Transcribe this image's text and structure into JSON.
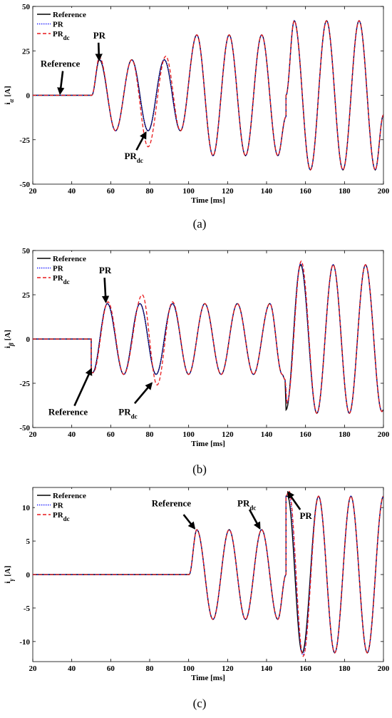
{
  "chart_data": [
    {
      "type": "line",
      "xlabel": "Time [ms]",
      "ylabel": "i",
      "ylabel_sub": "α",
      "ylabel_unit": "[A]",
      "xlim": [
        20,
        200
      ],
      "ylim": [
        -50,
        50
      ],
      "xticks": [
        20,
        40,
        60,
        80,
        100,
        120,
        140,
        160,
        180,
        200
      ],
      "yticks": [
        -50,
        -25,
        0,
        25,
        50
      ],
      "grid": false,
      "legend_position": "top-left",
      "caption": "(a)",
      "series": [
        {
          "name": "Reference",
          "color": "#000000",
          "dash": "solid",
          "x": [
            20,
            50,
            50.3,
            54.2,
            62.5,
            70.8,
            79.2,
            87.5,
            95.8,
            104.2,
            112.5,
            120.8,
            129.2,
            137.5,
            145.8,
            150,
            150,
            150.01,
            154.2,
            162.5,
            170.8,
            179.2,
            187.5,
            195.8,
            200
          ],
          "y": [
            0,
            0,
            0,
            20,
            -20,
            20,
            -20,
            20,
            -20,
            34,
            -34,
            34,
            -34,
            34,
            -34,
            -12,
            0,
            0,
            42,
            -42,
            42,
            -42,
            42,
            -42,
            -11
          ]
        },
        {
          "name": "PR",
          "color": "#1f1fff",
          "dash": "dot",
          "x": [
            20,
            50,
            50.3,
            54.2,
            62.5,
            70.8,
            79.2,
            87.5,
            95.8,
            104.2,
            112.5,
            120.8,
            129.2,
            137.5,
            145.8,
            150,
            150,
            150.01,
            154.2,
            162.5,
            170.8,
            179.2,
            187.5,
            195.8,
            200
          ],
          "y": [
            0,
            0,
            0,
            20.5,
            -20,
            20,
            -20,
            20,
            -20,
            34,
            -34,
            34,
            -34,
            34,
            -34,
            -12,
            0,
            0,
            42,
            -42,
            42,
            -42,
            42,
            -42,
            -11
          ]
        },
        {
          "name": "PR_dc",
          "color": "#e8191b",
          "dash": "dash",
          "x": [
            20,
            50,
            50.3,
            54.2,
            62.5,
            70.8,
            79.2,
            88.3,
            95.8,
            104.2,
            112.5,
            120.8,
            129.2,
            137.5,
            145.8,
            150,
            150,
            150.01,
            154.2,
            162.5,
            170.8,
            179.2,
            187.5,
            195.8,
            200
          ],
          "y": [
            0,
            0,
            0,
            21.5,
            -20,
            20,
            -29,
            22,
            -20,
            34,
            -34,
            34,
            -34,
            34,
            -34,
            -12,
            0,
            0,
            42,
            -42,
            42,
            -42,
            42,
            -42,
            -11
          ]
        }
      ],
      "legend": [
        {
          "label": "Reference",
          "sub": ""
        },
        {
          "label": "PR",
          "sub": ""
        },
        {
          "label": "PR",
          "sub": "dc"
        }
      ],
      "annotations": [
        {
          "label": "PR",
          "sub": "",
          "tx": 51,
          "ty": 32,
          "hx": 54,
          "hy": 20
        },
        {
          "label": "Reference",
          "sub": "",
          "tx": 24,
          "ty": 16,
          "hx": 34,
          "hy": 1
        },
        {
          "label": "PR",
          "sub": "dc",
          "tx": 67,
          "ty": -36,
          "hx": 78,
          "hy": -21
        }
      ]
    },
    {
      "type": "line",
      "xlabel": "Time [ms]",
      "ylabel": "i",
      "ylabel_sub": "β",
      "ylabel_unit": "[A]",
      "xlim": [
        20,
        200
      ],
      "ylim": [
        -50,
        50
      ],
      "xticks": [
        20,
        40,
        60,
        80,
        100,
        120,
        140,
        160,
        180,
        200
      ],
      "yticks": [
        -50,
        -25,
        0,
        25,
        50
      ],
      "grid": false,
      "legend_position": "top-left",
      "caption": "(b)",
      "series": [
        {
          "name": "Reference",
          "color": "#000000",
          "dash": "solid",
          "x": [
            20,
            50,
            50,
            50.7,
            58.3,
            66.7,
            75,
            83.3,
            91.7,
            100,
            108.3,
            116.7,
            125,
            133.3,
            141.7,
            148,
            149.5,
            150,
            150,
            157.5,
            165.8,
            174.2,
            182.5,
            190.8,
            199.2,
            200
          ],
          "y": [
            0,
            0,
            -19,
            -19,
            20,
            -20,
            20,
            -20,
            20,
            -20,
            20,
            -20,
            20,
            -20,
            20,
            -20,
            -23,
            -40,
            -40,
            42,
            -42,
            42,
            -42,
            42,
            -41,
            -40
          ]
        },
        {
          "name": "PR",
          "color": "#1f1fff",
          "dash": "dot",
          "x": [
            20,
            50,
            50,
            50.7,
            58.3,
            66.7,
            75,
            83.3,
            91.7,
            100,
            108.3,
            116.7,
            125,
            133.3,
            141.7,
            148,
            149.5,
            150.5,
            157.5,
            165.8,
            174.2,
            182.5,
            190.8,
            199.2,
            200
          ],
          "y": [
            0,
            0,
            -19,
            -19,
            20,
            -20,
            20,
            -20,
            20,
            -20,
            20,
            -20,
            20,
            -20,
            20,
            -20,
            -23,
            -36,
            43,
            -42,
            42,
            -42,
            42,
            -41,
            -40
          ]
        },
        {
          "name": "PR_dc",
          "color": "#e8191b",
          "dash": "dash",
          "x": [
            20,
            50,
            50,
            51,
            58.6,
            66.7,
            76.2,
            83.8,
            91.7,
            100,
            108.3,
            116.7,
            125,
            133.3,
            141.7,
            148,
            149.5,
            150.5,
            157.8,
            165.8,
            174.2,
            182.5,
            190.8,
            199.2,
            200
          ],
          "y": [
            0,
            0,
            -19,
            -19,
            21,
            -20,
            25,
            -26,
            21,
            -20,
            20,
            -20,
            20,
            -20,
            20,
            -20,
            -23,
            -36,
            44,
            -42,
            42,
            -42,
            42,
            -41,
            -40
          ]
        }
      ],
      "legend": [
        {
          "label": "Reference",
          "sub": ""
        },
        {
          "label": "PR",
          "sub": ""
        },
        {
          "label": "PR",
          "sub": "dc"
        }
      ],
      "annotations": [
        {
          "label": "PR",
          "sub": "",
          "tx": 54,
          "ty": 37,
          "hx": 57.5,
          "hy": 21
        },
        {
          "label": "Reference",
          "sub": "",
          "tx": 28,
          "ty": -43,
          "hx": 50,
          "hy": -17
        },
        {
          "label": "PR",
          "sub": "dc",
          "tx": 64,
          "ty": -43,
          "hx": 81,
          "hy": -25
        }
      ]
    },
    {
      "type": "line",
      "xlabel": "Time [ms]",
      "ylabel": "i",
      "ylabel_sub": "γ",
      "ylabel_unit": "[A]",
      "xlim": [
        20,
        200
      ],
      "ylim": [
        -13,
        13
      ],
      "xticks": [
        20,
        40,
        60,
        80,
        100,
        120,
        140,
        160,
        180,
        200
      ],
      "yticks": [
        -10,
        -5,
        0,
        5,
        10
      ],
      "grid": false,
      "legend_position": "top-left",
      "caption": "(c)",
      "series": [
        {
          "name": "Reference",
          "color": "#000000",
          "dash": "solid",
          "x": [
            20,
            100,
            100.3,
            104.2,
            112.5,
            120.8,
            129.2,
            137.5,
            145.8,
            150,
            150,
            150.01,
            150.8,
            158.3,
            166.7,
            175,
            183.3,
            191.7,
            200
          ],
          "y": [
            0,
            0,
            0,
            6.7,
            -6.7,
            6.7,
            -6.7,
            6.7,
            -6.7,
            0,
            11.7,
            11.7,
            11.7,
            -11.7,
            11.7,
            -11.7,
            11.7,
            -11.7,
            11.7
          ]
        },
        {
          "name": "PR",
          "color": "#1f1fff",
          "dash": "dot",
          "x": [
            20,
            100,
            100.3,
            104.2,
            112.5,
            120.8,
            129.2,
            137.5,
            145.8,
            150,
            150,
            151.3,
            158.6,
            166.7,
            175,
            183.3,
            191.7,
            200
          ],
          "y": [
            0,
            0,
            0,
            6.7,
            -6.7,
            6.7,
            -6.7,
            6.7,
            -6.7,
            0,
            11.7,
            12.2,
            -12,
            11.7,
            -11.7,
            11.7,
            -11.7,
            11.7
          ]
        },
        {
          "name": "PR_dc",
          "color": "#e8191b",
          "dash": "dash",
          "x": [
            20,
            100,
            100.3,
            104.2,
            112.5,
            120.8,
            129.2,
            137.5,
            145.8,
            150,
            150,
            151.5,
            158.8,
            166.7,
            175,
            183.3,
            191.7,
            200
          ],
          "y": [
            0,
            0,
            0,
            6.7,
            -6.7,
            6.7,
            -6.7,
            6.7,
            -6.7,
            0,
            11.7,
            12.5,
            -12.2,
            11.7,
            -11.7,
            11.7,
            -11.7,
            11.7
          ]
        }
      ],
      "legend": [
        {
          "label": "Reference",
          "sub": ""
        },
        {
          "label": "PR",
          "sub": ""
        },
        {
          "label": "PR",
          "sub": "dc"
        }
      ],
      "annotations": [
        {
          "label": "Reference",
          "sub": "",
          "tx": 81,
          "ty": 10.2,
          "hx": 103,
          "hy": 6.9
        },
        {
          "label": "PR",
          "sub": "dc",
          "tx": 125,
          "ty": 10.2,
          "hx": 136.5,
          "hy": 6.9
        },
        {
          "label": "PR",
          "sub": "",
          "tx": 157,
          "ty": 8.3,
          "hx": 151,
          "hy": 12.3
        }
      ]
    }
  ]
}
